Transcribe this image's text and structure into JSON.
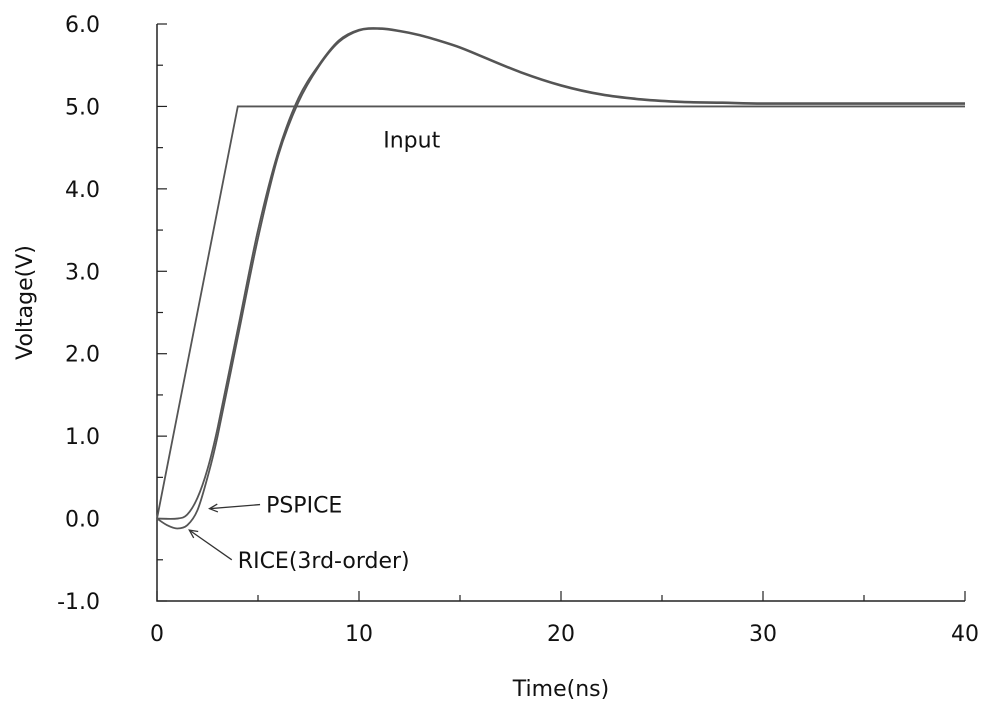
{
  "chart_data": {
    "type": "line",
    "title": "",
    "xlabel": "Time(ns)",
    "ylabel": "Voltage(V)",
    "xlim": [
      0,
      40
    ],
    "ylim": [
      -1.0,
      6.0
    ],
    "xticks": [
      0,
      10,
      20,
      30,
      40
    ],
    "xtick_labels": [
      "0",
      "10",
      "20",
      "30",
      "40"
    ],
    "yticks": [
      -1.0,
      0.0,
      1.0,
      2.0,
      3.0,
      4.0,
      5.0,
      6.0
    ],
    "ytick_labels": [
      "-1.0",
      "0.0",
      "1.0",
      "2.0",
      "3.0",
      "4.0",
      "5.0",
      "6.0"
    ],
    "grid": false,
    "series": [
      {
        "name": "Input",
        "x": [
          0,
          4,
          40
        ],
        "y": [
          0,
          5.0,
          5.0
        ]
      },
      {
        "name": "PSPICE",
        "x": [
          0,
          1,
          1.5,
          2,
          2.5,
          3,
          4,
          5,
          6,
          7,
          8,
          9,
          10,
          11,
          12,
          13,
          14,
          15,
          16,
          18,
          20,
          22,
          24,
          26,
          28,
          30,
          33,
          36,
          40
        ],
        "y": [
          0,
          0,
          0.05,
          0.25,
          0.6,
          1.1,
          2.3,
          3.5,
          4.45,
          5.1,
          5.5,
          5.8,
          5.93,
          5.95,
          5.92,
          5.87,
          5.8,
          5.72,
          5.62,
          5.42,
          5.26,
          5.15,
          5.09,
          5.06,
          5.05,
          5.04,
          5.04,
          5.04,
          5.04
        ]
      },
      {
        "name": "RICE(3rd-order)",
        "x": [
          0,
          0.5,
          1,
          1.5,
          2,
          2.5,
          3,
          4,
          5,
          6,
          7,
          8,
          9,
          10,
          11,
          12,
          13,
          14,
          15,
          16,
          18,
          20,
          22,
          24,
          26,
          28,
          30,
          33,
          36,
          40
        ],
        "y": [
          0,
          -0.08,
          -0.12,
          -0.08,
          0.1,
          0.5,
          1.0,
          2.2,
          3.4,
          4.4,
          5.05,
          5.48,
          5.78,
          5.92,
          5.94,
          5.91,
          5.86,
          5.79,
          5.71,
          5.61,
          5.41,
          5.25,
          5.14,
          5.08,
          5.05,
          5.04,
          5.03,
          5.03,
          5.03,
          5.03
        ]
      }
    ],
    "annotations": [
      {
        "text": "Input",
        "x": 11.2,
        "y": 4.6
      },
      {
        "text": "PSPICE",
        "x": 5.4,
        "y": 0.17,
        "arrow_to": [
          2.6,
          0.12
        ]
      },
      {
        "text": "RICE(3rd-order)",
        "x": 4.0,
        "y": -0.5,
        "arrow_to": [
          1.6,
          -0.14
        ]
      }
    ]
  }
}
